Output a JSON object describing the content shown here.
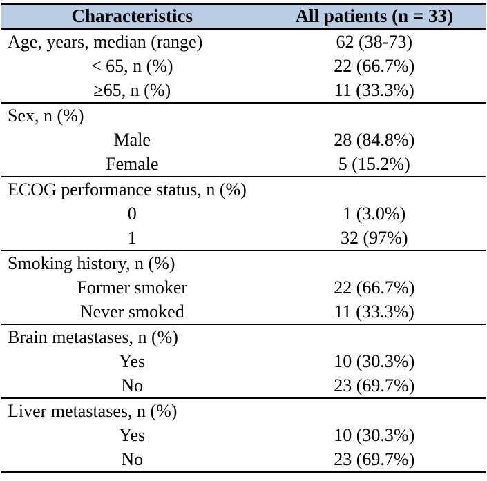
{
  "colors": {
    "header_bg": "#b9cde5",
    "border": "#000000",
    "text": "#000000",
    "page_bg": "#ffffff"
  },
  "table": {
    "header": {
      "characteristics": "Characteristics",
      "all_patients": "All patients (n = 33)"
    },
    "sections": [
      {
        "name": "age",
        "rows": [
          {
            "type": "category",
            "label": "Age, years, median (range)",
            "value": "62 (38-73)"
          },
          {
            "type": "sub",
            "label": "< 65, n (%)",
            "value": "22 (66.7%)"
          },
          {
            "type": "sub",
            "label": "≥65, n (%)",
            "value": "11 (33.3%)"
          }
        ]
      },
      {
        "name": "sex",
        "rows": [
          {
            "type": "category",
            "label": "Sex, n (%)",
            "value": ""
          },
          {
            "type": "sub",
            "label": "Male",
            "value": "28 (84.8%)"
          },
          {
            "type": "sub",
            "label": "Female",
            "value": "5 (15.2%)"
          }
        ]
      },
      {
        "name": "ecog",
        "rows": [
          {
            "type": "category",
            "label": "ECOG performance status, n (%)",
            "value": ""
          },
          {
            "type": "sub",
            "label": "0",
            "value": "1 (3.0%)"
          },
          {
            "type": "sub",
            "label": "1",
            "value": "32 (97%)"
          }
        ]
      },
      {
        "name": "smoking",
        "rows": [
          {
            "type": "category",
            "label": "Smoking history, n (%)",
            "value": ""
          },
          {
            "type": "sub",
            "label": "Former smoker",
            "value": "22 (66.7%)"
          },
          {
            "type": "sub",
            "label": "Never smoked",
            "value": "11 (33.3%)"
          }
        ]
      },
      {
        "name": "brain-metastases",
        "rows": [
          {
            "type": "category",
            "label": "Brain metastases, n (%)",
            "value": ""
          },
          {
            "type": "sub",
            "label": "Yes",
            "value": "10 (30.3%)"
          },
          {
            "type": "sub",
            "label": "No",
            "value": "23 (69.7%)"
          }
        ]
      },
      {
        "name": "liver-metastases",
        "rows": [
          {
            "type": "category",
            "label": "Liver metastases, n (%)",
            "value": ""
          },
          {
            "type": "sub",
            "label": "Yes",
            "value": "10 (30.3%)"
          },
          {
            "type": "sub",
            "label": "No",
            "value": "23 (69.7%)"
          }
        ]
      }
    ]
  }
}
